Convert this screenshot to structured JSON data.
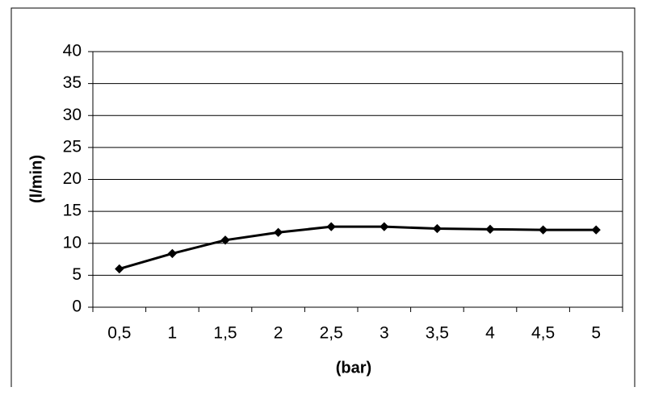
{
  "chart_data": {
    "type": "line",
    "categories": [
      "0,5",
      "1",
      "1,5",
      "2",
      "2,5",
      "3",
      "3,5",
      "4",
      "4,5",
      "5"
    ],
    "values": [
      6,
      8.4,
      10.5,
      11.7,
      12.6,
      12.6,
      12.3,
      12.2,
      12.1,
      12.1
    ],
    "color": "#000000",
    "ylim": [
      0,
      40
    ],
    "yticks": [
      0,
      5,
      10,
      15,
      20,
      25,
      30,
      35,
      40
    ],
    "grid": true,
    "x_label": "(bar)",
    "y_label": "(l/min)"
  }
}
